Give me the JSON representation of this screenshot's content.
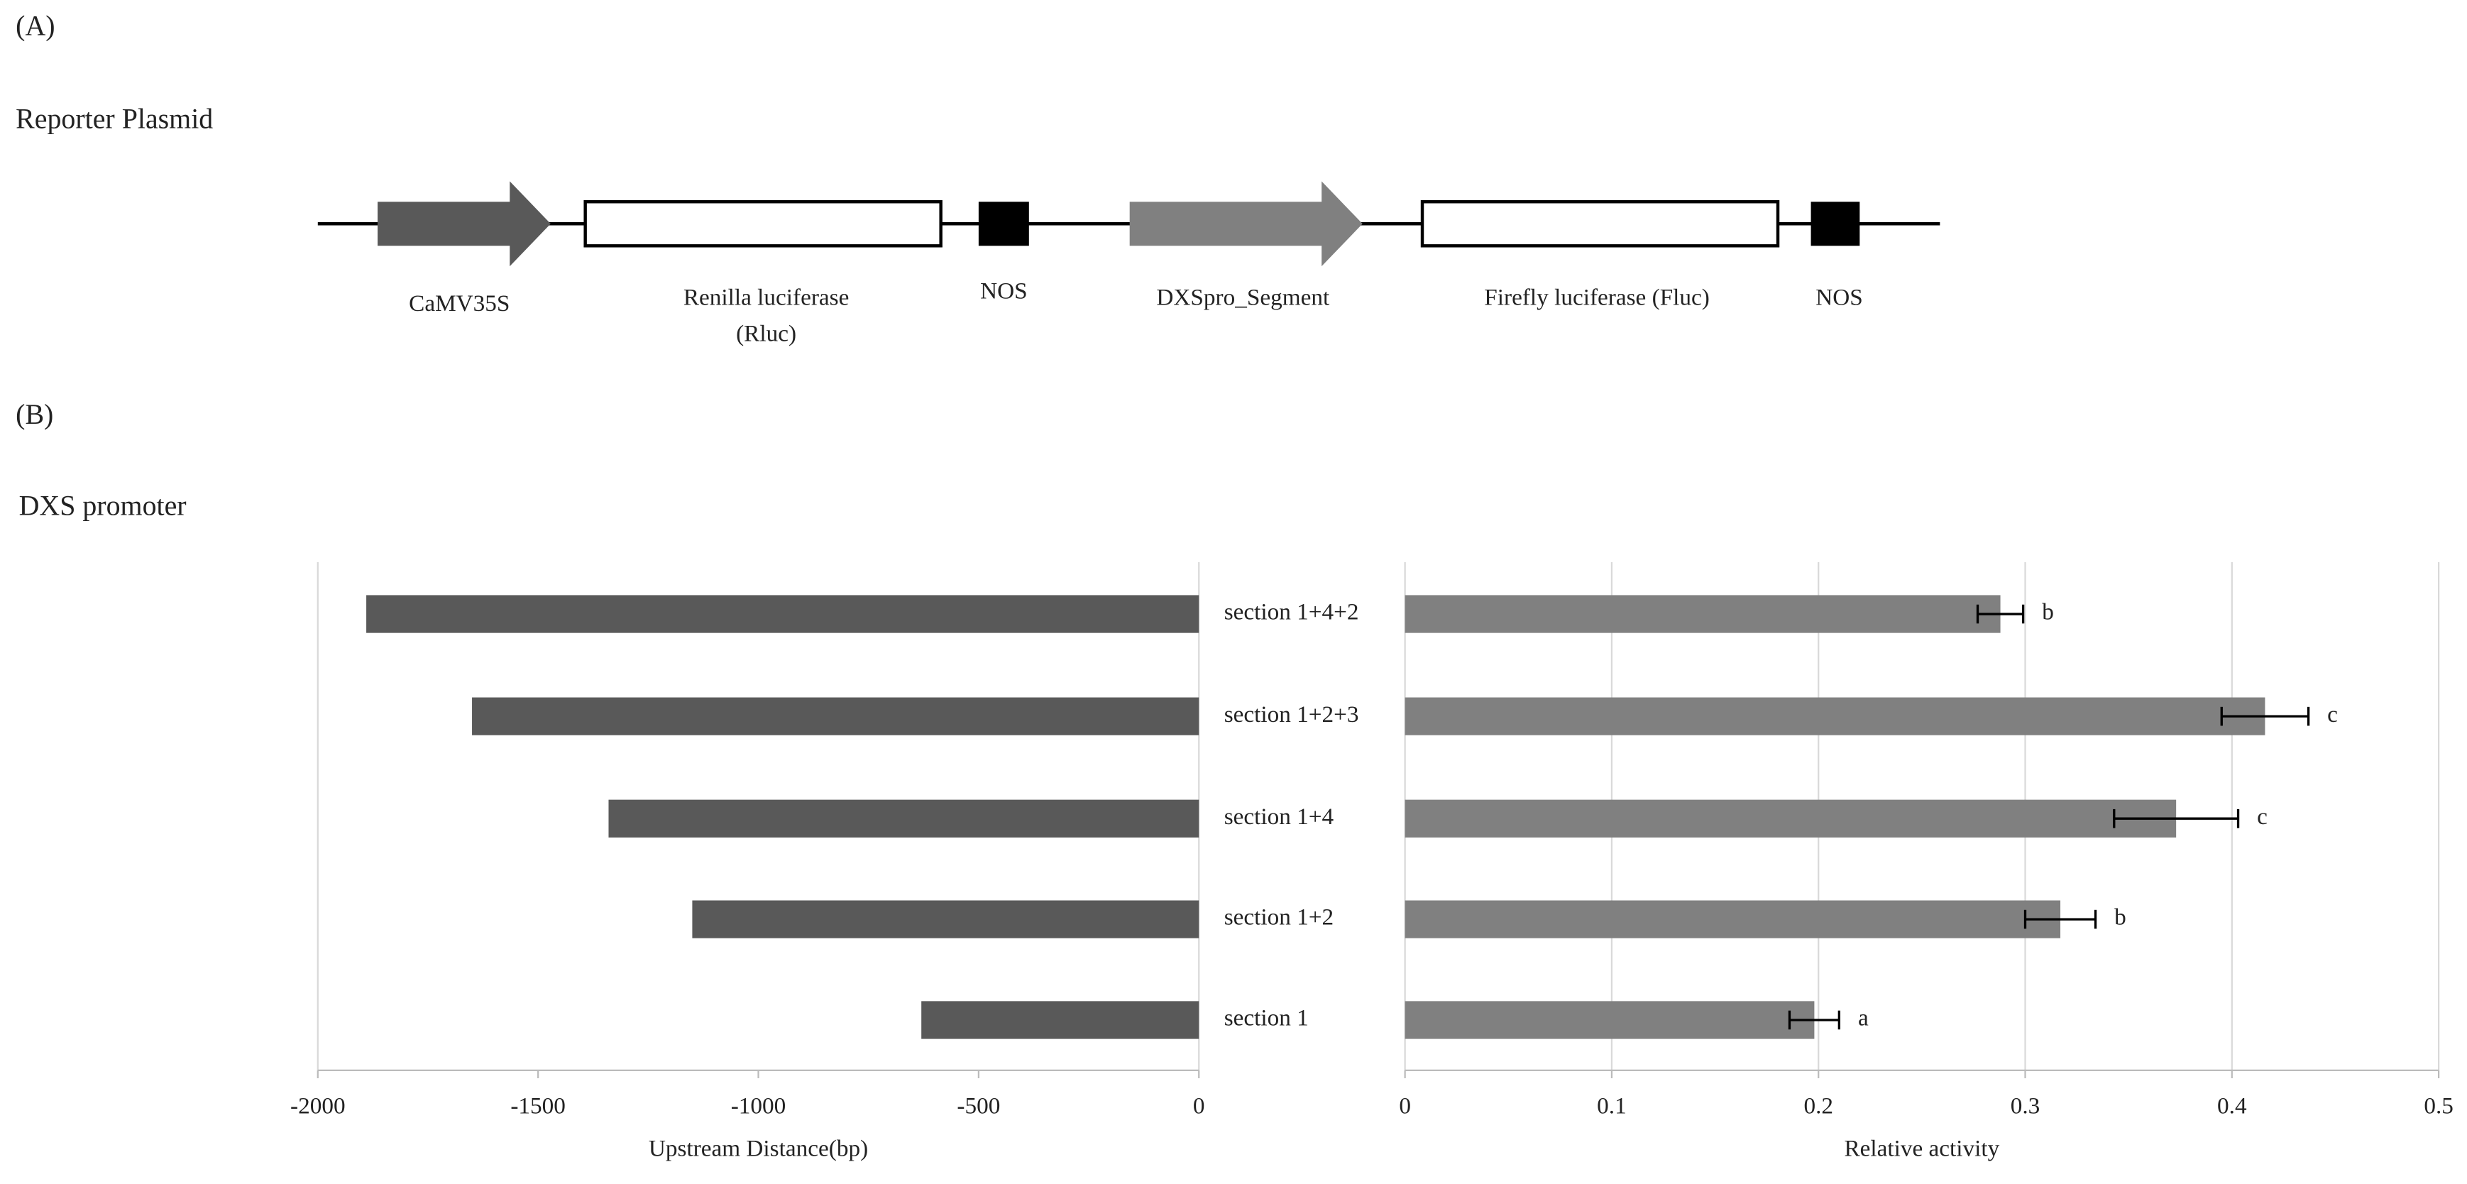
{
  "panel_a": {
    "label": "(A)",
    "title": "Reporter Plasmid",
    "elements": [
      {
        "lines": [
          "CaMV35S"
        ]
      },
      {
        "lines": [
          "Renilla luciferase",
          "(Rluc)"
        ]
      },
      {
        "lines": [
          "NOS"
        ]
      },
      {
        "lines": [
          "DXSpro_Segment"
        ]
      },
      {
        "lines": [
          "Firefly luciferase (Fluc)"
        ]
      },
      {
        "lines": [
          "NOS"
        ]
      }
    ]
  },
  "panel_b": {
    "label": "(B)",
    "title": "DXS promoter"
  },
  "chart_data": [
    {
      "type": "hbar",
      "x_label": "Upstream Distance(bp)",
      "categories": [
        "section 1+4+2",
        "section 1+2+3",
        "section 1+4",
        "section 1+2",
        "section 1"
      ],
      "values": [
        -1890,
        -1650,
        -1340,
        -1150,
        -630
      ],
      "color": "#595959",
      "xlim": [
        -2000,
        0
      ],
      "xticks": [
        -2000,
        -1500,
        -1000,
        -500,
        0
      ],
      "grid": false
    },
    {
      "type": "hbar",
      "x_label": "Relative activity",
      "values": [
        0.288,
        0.416,
        0.373,
        0.317,
        0.198
      ],
      "errors": [
        0.011,
        0.021,
        0.03,
        0.017,
        0.012
      ],
      "annotations": [
        "b",
        "c",
        "c",
        "b",
        "a"
      ],
      "color": "#808080",
      "xlim": [
        0,
        0.5
      ],
      "xticks": [
        0,
        0.1,
        0.2,
        0.3,
        0.4,
        0.5
      ],
      "grid": true
    }
  ]
}
